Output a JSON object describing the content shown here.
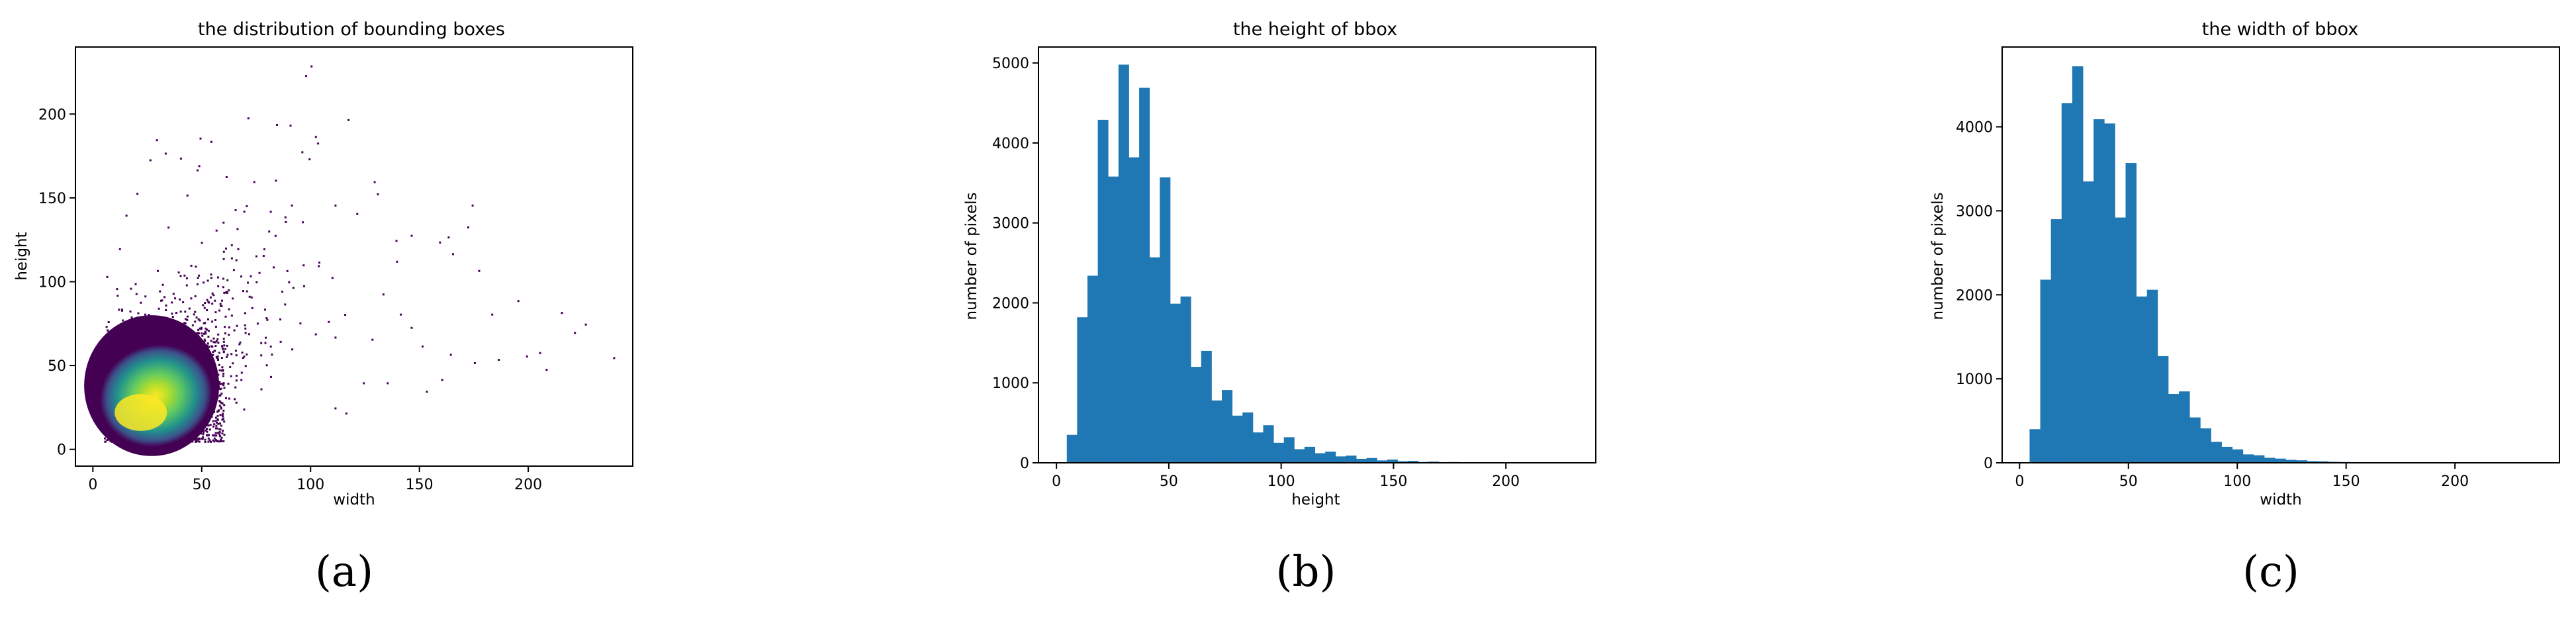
{
  "figure": {
    "captions": [
      "(a)",
      "(b)",
      "(c)"
    ]
  },
  "chart_data": [
    {
      "type": "scatter",
      "title": "the distribution of bounding boxes",
      "xlabel": "width",
      "ylabel": "height",
      "xlim": [
        -8,
        248
      ],
      "ylim": [
        -10,
        240
      ],
      "xticks": [
        0,
        50,
        100,
        150,
        200
      ],
      "yticks": [
        0,
        50,
        100,
        150,
        200
      ],
      "colormap": [
        "#440154",
        "#3b528b",
        "#21918c",
        "#5ec962",
        "#fde725"
      ],
      "density_peak": [
        22,
        22
      ],
      "outlier_points": [
        [
          100,
          229
        ],
        [
          102,
          187
        ],
        [
          103,
          183
        ],
        [
          117,
          197
        ],
        [
          71,
          198
        ],
        [
          49,
          186
        ],
        [
          54,
          184
        ],
        [
          40,
          174
        ],
        [
          33,
          177
        ],
        [
          29,
          185
        ],
        [
          26,
          173
        ],
        [
          129,
          160
        ],
        [
          111,
          146
        ],
        [
          121,
          141
        ],
        [
          174,
          146
        ],
        [
          172,
          133
        ],
        [
          163,
          127
        ],
        [
          159,
          124
        ],
        [
          146,
          128
        ],
        [
          139,
          125
        ],
        [
          165,
          117
        ],
        [
          177,
          107
        ],
        [
          183,
          81
        ],
        [
          195,
          89
        ],
        [
          215,
          82
        ],
        [
          221,
          70
        ],
        [
          226,
          75
        ],
        [
          239,
          55
        ],
        [
          208,
          48
        ],
        [
          205,
          58
        ],
        [
          199,
          56
        ],
        [
          186,
          54
        ],
        [
          175,
          52
        ],
        [
          164,
          57
        ],
        [
          160,
          42
        ],
        [
          153,
          35
        ],
        [
          135,
          40
        ],
        [
          124,
          40
        ],
        [
          116,
          22
        ],
        [
          111,
          25
        ],
        [
          128,
          66
        ],
        [
          133,
          93
        ],
        [
          146,
          73
        ],
        [
          151,
          62
        ],
        [
          141,
          81
        ],
        [
          88,
          139
        ],
        [
          96,
          136
        ],
        [
          61,
          163
        ],
        [
          43,
          152
        ],
        [
          20,
          153
        ],
        [
          12,
          120
        ],
        [
          15,
          140
        ],
        [
          78,
          116
        ],
        [
          66,
          132
        ]
      ]
    },
    {
      "type": "bar",
      "title": "the height of bbox",
      "xlabel": "height",
      "ylabel": "number of pixels",
      "xlim": [
        -8,
        240
      ],
      "ylim": [
        0,
        5200
      ],
      "xticks": [
        0,
        50,
        100,
        150,
        200
      ],
      "yticks": [
        0,
        1000,
        2000,
        3000,
        4000,
        5000
      ],
      "bin_start": 4.6,
      "bin_width": 4.6,
      "values": [
        350,
        1820,
        2340,
        4290,
        3580,
        4980,
        3820,
        4690,
        2570,
        3570,
        1990,
        2080,
        1200,
        1400,
        780,
        910,
        590,
        630,
        380,
        470,
        250,
        320,
        170,
        200,
        120,
        140,
        80,
        90,
        50,
        60,
        30,
        40,
        20,
        25,
        10,
        15,
        8,
        10,
        5,
        5,
        3,
        3,
        2,
        2,
        1,
        1,
        1,
        1
      ]
    },
    {
      "type": "bar",
      "title": "the width of bbox",
      "xlabel": "width",
      "ylabel": "number of pixels",
      "xlim": [
        -8,
        248
      ],
      "ylim": [
        0,
        4950
      ],
      "xticks": [
        0,
        50,
        100,
        150,
        200
      ],
      "yticks": [
        0,
        1000,
        2000,
        3000,
        4000
      ],
      "bin_start": 4.6,
      "bin_width": 4.9,
      "values": [
        400,
        2180,
        2900,
        4280,
        4720,
        3350,
        4090,
        4040,
        2920,
        3570,
        1980,
        2060,
        1270,
        820,
        850,
        540,
        410,
        250,
        190,
        160,
        100,
        90,
        60,
        50,
        35,
        30,
        20,
        18,
        12,
        10,
        6,
        5,
        3,
        3,
        2,
        2,
        1,
        1,
        1,
        1
      ]
    }
  ]
}
